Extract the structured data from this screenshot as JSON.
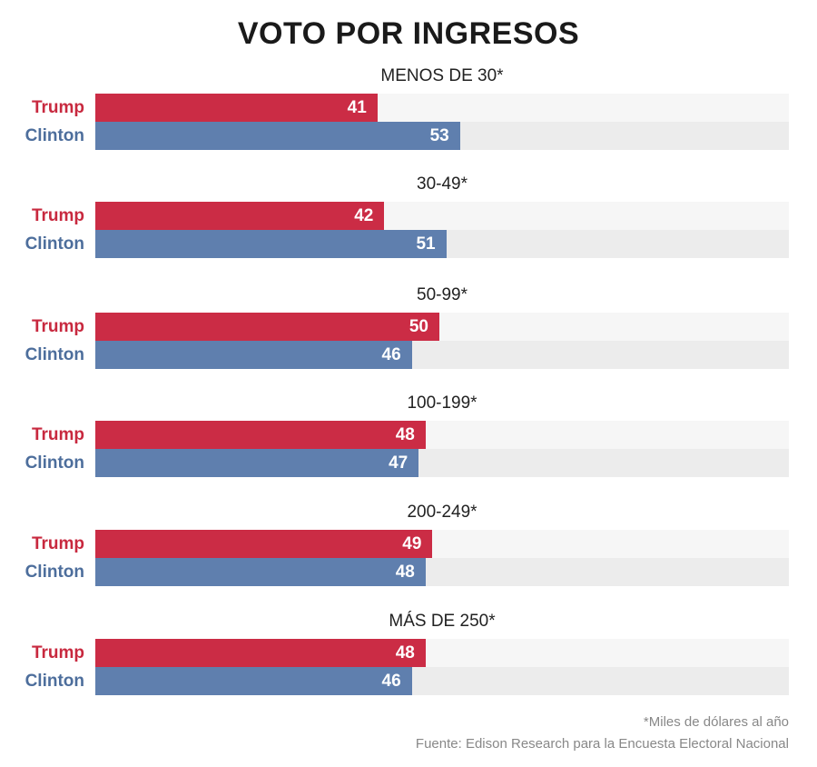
{
  "colors": {
    "trump": "#cb2c45",
    "clinton": "#5f7fae",
    "trump_label": "#c8293f",
    "clinton_label": "#4d6e9c"
  },
  "chart_data": {
    "type": "bar",
    "orientation": "horizontal",
    "title": "VOTO POR INGRESOS",
    "categories": [
      "MENOS DE 30*",
      "30-49*",
      "50-99*",
      "100-199*",
      "200-249*",
      "MÁS DE 250*"
    ],
    "series": [
      {
        "name": "Trump",
        "values": [
          41,
          42,
          50,
          48,
          49,
          48
        ]
      },
      {
        "name": "Clinton",
        "values": [
          53,
          51,
          46,
          47,
          48,
          46
        ]
      }
    ],
    "xlim": [
      0,
      100
    ],
    "grid": false,
    "data_labels": true
  },
  "footnotes": {
    "note": "*Miles de dólares al año",
    "source": "Fuente: Edison Research para la Encuesta Electoral Nacional"
  }
}
